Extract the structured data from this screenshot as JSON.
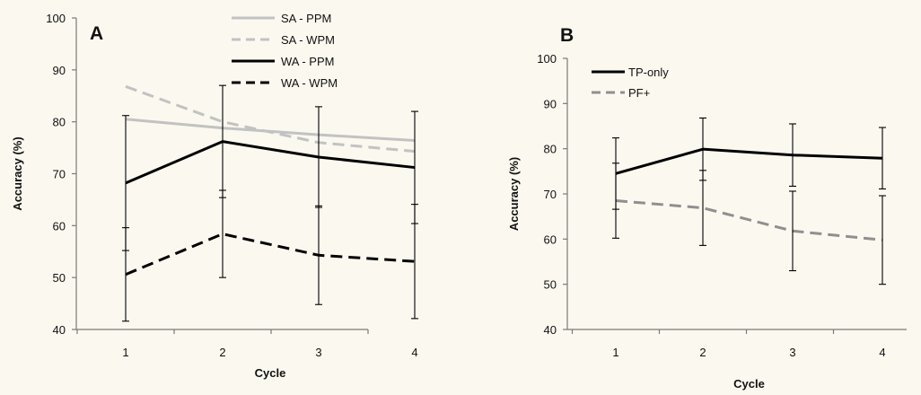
{
  "chart_data": [
    {
      "panel_label": "A",
      "type": "line",
      "xlabel": "Cycle",
      "ylabel": "Accuracy (%)",
      "x": [
        1,
        2,
        3,
        4
      ],
      "x_ticks": [
        "1",
        "2",
        "3",
        "4"
      ],
      "ylim": [
        40,
        100
      ],
      "y_ticks": [
        "40",
        "50",
        "60",
        "70",
        "80",
        "90",
        "100"
      ],
      "grid": false,
      "legend_placement": "top-right",
      "series": [
        {
          "name": "SA - PPM",
          "values": [
            80.5,
            78.8,
            77.5,
            76.4
          ],
          "err": [
            0,
            0,
            0,
            0
          ],
          "color": "#c2c2c2",
          "dash": "solid"
        },
        {
          "name": "SA - WPM",
          "values": [
            86.8,
            80.0,
            76.0,
            74.3
          ],
          "err": [
            0,
            0,
            0,
            0
          ],
          "color": "#c2c2c2",
          "dash": "dashed"
        },
        {
          "name": "WA - PPM",
          "values": [
            68.2,
            76.2,
            73.2,
            71.2
          ],
          "err": [
            13.0,
            10.8,
            9.7,
            10.8
          ],
          "color": "#000000",
          "dash": "solid"
        },
        {
          "name": "WA - WPM",
          "values": [
            50.6,
            58.4,
            54.3,
            53.1
          ],
          "err": [
            9.0,
            8.4,
            9.5,
            11.0
          ],
          "color": "#000000",
          "dash": "dashed"
        }
      ]
    },
    {
      "panel_label": "B",
      "type": "line",
      "xlabel": "Cycle",
      "ylabel": "Accuracy (%)",
      "x": [
        1,
        2,
        3,
        4
      ],
      "x_ticks": [
        "1",
        "2",
        "3",
        "4"
      ],
      "ylim": [
        40,
        100
      ],
      "y_ticks": [
        "40",
        "50",
        "60",
        "70",
        "80",
        "90",
        "100"
      ],
      "grid": false,
      "legend_placement": "top-left",
      "series": [
        {
          "name": "TP-only",
          "values": [
            74.5,
            79.9,
            78.6,
            77.9
          ],
          "err": [
            7.9,
            6.9,
            6.9,
            6.8
          ],
          "color": "#000000",
          "dash": "solid"
        },
        {
          "name": "PF+",
          "values": [
            68.5,
            66.9,
            61.8,
            59.8
          ],
          "err": [
            8.3,
            8.3,
            8.8,
            9.8
          ],
          "color": "#8f8f8f",
          "dash": "dashed"
        }
      ]
    }
  ]
}
